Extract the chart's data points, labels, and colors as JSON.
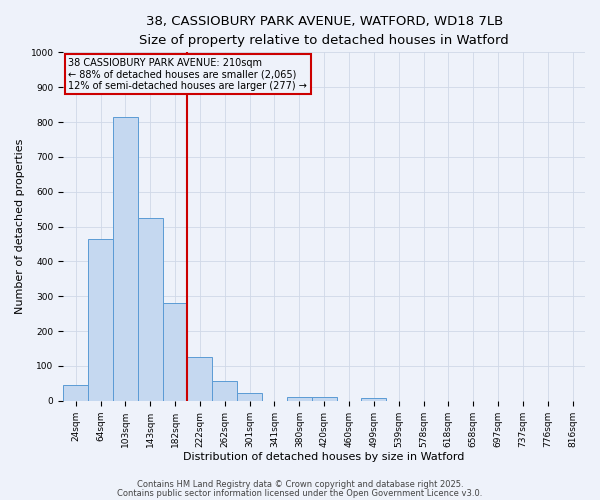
{
  "title_line1": "38, CASSIOBURY PARK AVENUE, WATFORD, WD18 7LB",
  "title_line2": "Size of property relative to detached houses in Watford",
  "xlabel": "Distribution of detached houses by size in Watford",
  "ylabel": "Number of detached properties",
  "categories": [
    "24sqm",
    "64sqm",
    "103sqm",
    "143sqm",
    "182sqm",
    "222sqm",
    "262sqm",
    "301sqm",
    "341sqm",
    "380sqm",
    "420sqm",
    "460sqm",
    "499sqm",
    "539sqm",
    "578sqm",
    "618sqm",
    "658sqm",
    "697sqm",
    "737sqm",
    "776sqm",
    "816sqm"
  ],
  "values": [
    45,
    465,
    815,
    525,
    280,
    125,
    57,
    22,
    0,
    10,
    10,
    0,
    7,
    0,
    0,
    0,
    0,
    0,
    0,
    0,
    0
  ],
  "bar_color": "#c5d8f0",
  "bar_edge_color": "#5b9bd5",
  "vline_color": "#cc0000",
  "vline_x_index": 4.5,
  "annotation_text_line1": "38 CASSIOBURY PARK AVENUE: 210sqm",
  "annotation_text_line2": "← 88% of detached houses are smaller (2,065)",
  "annotation_text_line3": "12% of semi-detached houses are larger (277) →",
  "annotation_box_color": "#cc0000",
  "ylim": [
    0,
    1000
  ],
  "yticks": [
    0,
    100,
    200,
    300,
    400,
    500,
    600,
    700,
    800,
    900,
    1000
  ],
  "grid_color": "#d0d8e8",
  "background_color": "#eef2fa",
  "footer_line1": "Contains HM Land Registry data © Crown copyright and database right 2025.",
  "footer_line2": "Contains public sector information licensed under the Open Government Licence v3.0.",
  "title_fontsize": 9.5,
  "subtitle_fontsize": 8.5,
  "tick_fontsize": 6.5,
  "ylabel_fontsize": 8,
  "xlabel_fontsize": 8,
  "annotation_fontsize": 7,
  "footer_fontsize": 6
}
